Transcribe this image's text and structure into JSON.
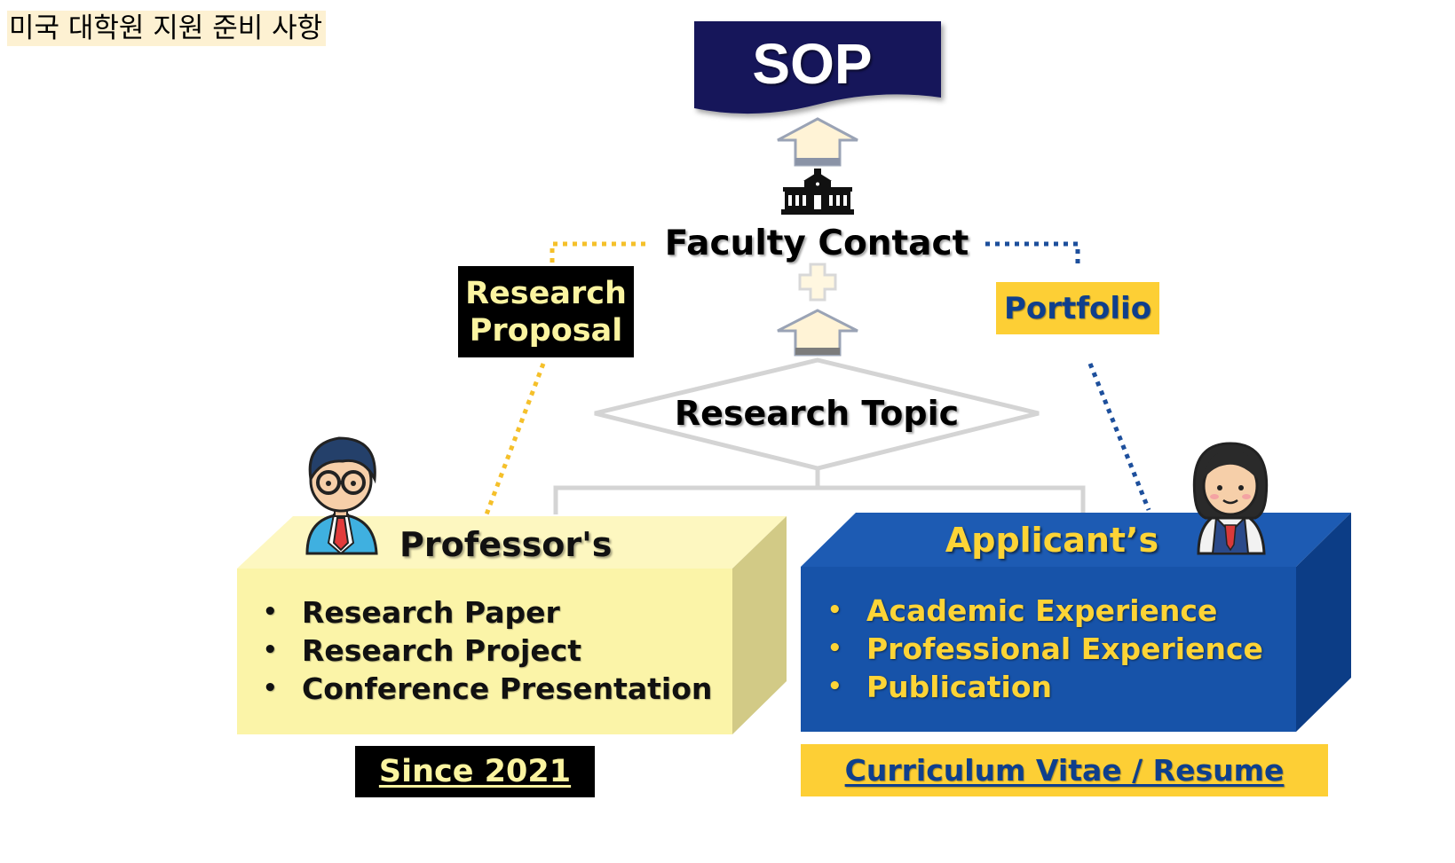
{
  "page_title": "미국 대학원 지원 준비 사항",
  "diagram": {
    "sop": "SOP",
    "faculty_contact": "Faculty Contact",
    "research_proposal": [
      "Research",
      "Proposal"
    ],
    "portfolio": "Portfolio",
    "research_topic": "Research Topic",
    "professor": {
      "title": "Professor's",
      "items": [
        "Research Paper",
        "Research Project",
        "Conference Presentation"
      ],
      "footer": "Since 2021"
    },
    "applicant": {
      "title": "Applicant’s",
      "items": [
        "Academic Experience",
        "Professional Experience",
        "Publication"
      ],
      "footer": "Curriculum Vitae / Resume"
    }
  },
  "icons": {
    "sop_banner": "banner-flag-icon",
    "university": "university-building-icon",
    "plus": "plus-icon",
    "professor": "professor-avatar-icon",
    "applicant": "student-avatar-icon"
  },
  "colors": {
    "navy": "#13155a",
    "gold": "#fdcf35",
    "royal_blue": "#1b55a8",
    "cream": "#fbf4a8",
    "dotted_gold": "#f5c02a",
    "dotted_blue": "#1d4f9c"
  }
}
